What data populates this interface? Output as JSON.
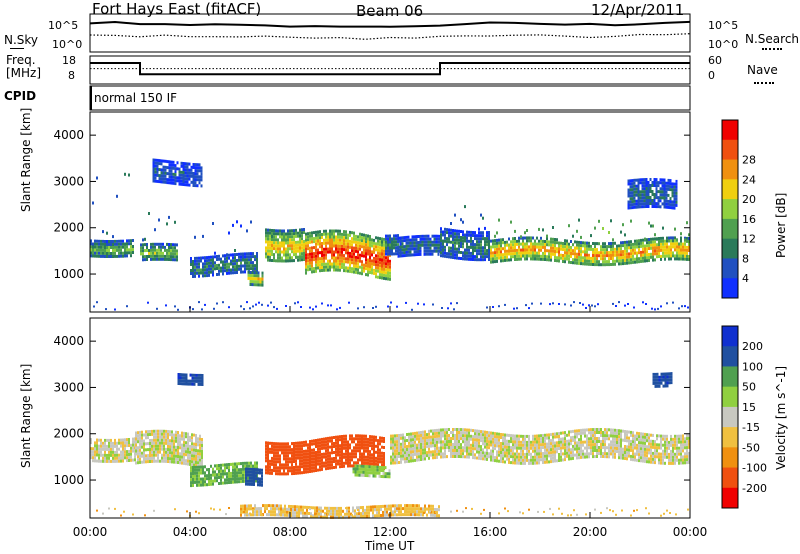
{
  "header": {
    "station": "Fort Hays East (fitACF)",
    "beam": "Beam 06",
    "date": "12/Apr/2011"
  },
  "panels": {
    "nsky_label": "N.Sky",
    "nsearch_label": "N.Search",
    "noise_ticks_left": [
      "10^5",
      "10^0"
    ],
    "noise_ticks_right": [
      "10^5",
      "10^0"
    ],
    "freq_label_1": "Freq.",
    "freq_label_2": "[MHz]",
    "freq_ticks": [
      "18",
      "8"
    ],
    "nave_label": "Nave",
    "nave_ticks": [
      "60",
      "0"
    ],
    "cpid_label": "CPID",
    "cpid_value": "normal 150 IF"
  },
  "chart_data": [
    {
      "type": "line",
      "name": "noise",
      "series": [
        {
          "name": "N.Sky",
          "style": "solid",
          "values_log10": [
            3.8,
            3.9,
            3.7,
            3.8,
            3.6,
            3.7,
            3.5,
            3.6,
            3.4,
            3.5,
            3.4,
            3.3,
            3.4,
            3.3,
            3.5,
            3.6,
            3.8,
            3.9,
            3.8,
            3.7,
            3.6,
            3.5,
            3.7,
            3.8,
            3.9
          ]
        },
        {
          "name": "N.Search",
          "style": "dotted",
          "values_log10": [
            2.2,
            2.3,
            2.1,
            2.2,
            2.0,
            2.1,
            1.9,
            2.0,
            1.9,
            1.8,
            1.9,
            1.8,
            1.9,
            1.9,
            2.0,
            2.1,
            2.2,
            2.3,
            2.2,
            2.1,
            2.0,
            2.1,
            2.2,
            2.3,
            2.3
          ]
        }
      ],
      "xlim_hours": [
        0,
        24
      ]
    },
    {
      "type": "line",
      "name": "frequency-nave",
      "freq_steps": [
        {
          "from_hour": 0,
          "to_hour": 2,
          "mhz": 15.5
        },
        {
          "from_hour": 2,
          "to_hour": 14,
          "mhz": 11.5
        },
        {
          "from_hour": 14,
          "to_hour": 24,
          "mhz": 15.5
        }
      ],
      "nave_level": 33,
      "ylim_freq": [
        8,
        18
      ],
      "ylim_nave": [
        0,
        60
      ]
    },
    {
      "type": "heatmap",
      "name": "power",
      "ylabel": "Slant Range [km]",
      "ylim": [
        180,
        4500
      ],
      "yticks": [
        1000,
        2000,
        3000,
        4000
      ],
      "colorbar_label": "Power [dB]",
      "colorbar_ticks": [
        4,
        8,
        12,
        16,
        20,
        24,
        28
      ],
      "colors": [
        "#1030ff",
        "#2050c0",
        "#2a7a5a",
        "#50a050",
        "#90d040",
        "#f0d010",
        "#f09010",
        "#f05010",
        "#f00000"
      ],
      "features": [
        {
          "from_hour": 0.0,
          "to_hour": 1.7,
          "range_center": 1600,
          "range_halfwidth": 180,
          "peak": 14,
          "scatter_top": 3200
        },
        {
          "from_hour": 2.0,
          "to_hour": 3.5,
          "range_center": 1450,
          "range_halfwidth": 180,
          "peak": 16,
          "scatter_top": 2400
        },
        {
          "from_hour": 2.5,
          "to_hour": 4.5,
          "range_center": 3200,
          "range_halfwidth": 250,
          "peak": 6
        },
        {
          "from_hour": 4.0,
          "to_hour": 6.7,
          "range_center": 1200,
          "range_halfwidth": 220,
          "peak": 10,
          "scatter_top": 2200
        },
        {
          "from_hour": 6.3,
          "to_hour": 6.9,
          "range_center": 900,
          "range_halfwidth": 140,
          "peak": 22
        },
        {
          "from_hour": 7.0,
          "to_hour": 8.6,
          "range_center": 1700,
          "range_halfwidth": 350,
          "peak": 22
        },
        {
          "from_hour": 8.6,
          "to_hour": 12.0,
          "range_center": 1400,
          "range_halfwidth": 450,
          "peak": 30
        },
        {
          "from_hour": 11.8,
          "to_hour": 12.3,
          "range_center": 1700,
          "range_halfwidth": 200,
          "peak": 10
        },
        {
          "from_hour": 12.3,
          "to_hour": 14.0,
          "range_center": 1600,
          "range_halfwidth": 200,
          "peak": 8
        },
        {
          "from_hour": 14.0,
          "to_hour": 16.0,
          "range_center": 1700,
          "range_halfwidth": 300,
          "peak": 10,
          "scatter_top": 2500
        },
        {
          "from_hour": 16.0,
          "to_hour": 24.0,
          "range_center": 1500,
          "range_halfwidth": 250,
          "peak": 24,
          "scatter_top": 2200
        },
        {
          "from_hour": 21.5,
          "to_hour": 23.5,
          "range_center": 2700,
          "range_halfwidth": 300,
          "peak": 8
        }
      ]
    },
    {
      "type": "heatmap",
      "name": "velocity",
      "ylabel": "Slant Range [km]",
      "ylim": [
        180,
        4500
      ],
      "yticks": [
        1000,
        2000,
        3000,
        4000
      ],
      "colorbar_label": "Velocity [m s^-1]",
      "colorbar_ticks": [
        200,
        100,
        50,
        15,
        -15,
        -50,
        -100,
        -200
      ],
      "colors": [
        "#1030d0",
        "#2050a0",
        "#50a050",
        "#90d040",
        "#c8c8c0",
        "#f0c040",
        "#f09010",
        "#f05010",
        "#f00000"
      ],
      "features": [
        {
          "from_hour": 0.0,
          "to_hour": 1.8,
          "range_center": 1700,
          "range_halfwidth": 250,
          "value": 0
        },
        {
          "from_hour": 1.8,
          "to_hour": 4.5,
          "range_center": 1650,
          "range_halfwidth": 350,
          "value": 0
        },
        {
          "from_hour": 3.5,
          "to_hour": 4.5,
          "range_center": 3200,
          "range_halfwidth": 120,
          "value": 180
        },
        {
          "from_hour": 4.0,
          "to_hour": 6.7,
          "range_center": 1150,
          "range_halfwidth": 200,
          "value": 60
        },
        {
          "from_hour": 6.2,
          "to_hour": 6.9,
          "range_center": 1050,
          "range_halfwidth": 180,
          "value": 150
        },
        {
          "from_hour": 7.0,
          "to_hour": 11.8,
          "range_center": 1550,
          "range_halfwidth": 350,
          "value": -160
        },
        {
          "from_hour": 10.5,
          "to_hour": 12.0,
          "range_center": 1200,
          "range_halfwidth": 120,
          "value": 40
        },
        {
          "from_hour": 12.0,
          "to_hour": 24.0,
          "range_center": 1750,
          "range_halfwidth": 300,
          "value": 0
        },
        {
          "from_hour": 22.5,
          "to_hour": 23.3,
          "range_center": 3200,
          "range_halfwidth": 150,
          "value": 180
        },
        {
          "from_hour": 6.0,
          "to_hour": 14.0,
          "range_center": 330,
          "range_halfwidth": 120,
          "value": -30
        }
      ]
    }
  ],
  "xaxis": {
    "label": "Time UT",
    "ticks": [
      "00:00",
      "04:00",
      "08:00",
      "12:00",
      "16:00",
      "20:00",
      "00:00"
    ]
  }
}
